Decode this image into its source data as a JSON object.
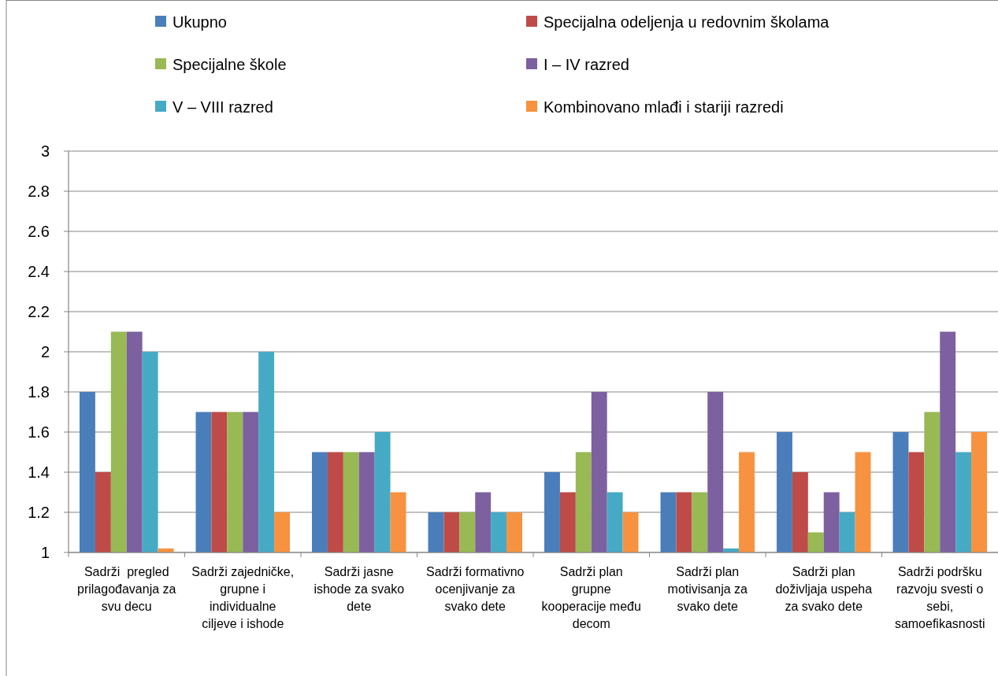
{
  "chart_data": {
    "type": "bar",
    "categories": [
      "Sadrži  pregled prilagođavanja za svu decu",
      "Sadrži zajedničke, grupne i individualne ciljeve i ishode",
      "Sadrži jasne ishode za svako dete",
      "Sadrži formativno ocenjivanje za svako dete",
      "Sadrži plan grupne kooperacije među decom",
      "Sadrži plan motivisanja za svako dete",
      "Sadrži plan doživljaja uspeha za svako dete",
      "Sadrži podršku razvoju svesti o sebi, samoefikasnosti"
    ],
    "series": [
      {
        "name": "Ukupno",
        "color": "#4a7ebb",
        "values": [
          1.8,
          1.7,
          1.5,
          1.2,
          1.4,
          1.3,
          1.6,
          1.6
        ]
      },
      {
        "name": "Specijalna odeljenja u redovnim školama",
        "color": "#be4b48",
        "values": [
          1.4,
          1.7,
          1.5,
          1.2,
          1.3,
          1.3,
          1.4,
          1.5
        ]
      },
      {
        "name": "Specijalne škole",
        "color": "#98b954",
        "values": [
          2.1,
          1.7,
          1.5,
          1.2,
          1.5,
          1.3,
          1.1,
          1.7
        ]
      },
      {
        "name": "I – IV razred",
        "color": "#7d60a0",
        "values": [
          2.1,
          1.7,
          1.5,
          1.3,
          1.8,
          1.8,
          1.3,
          2.1
        ]
      },
      {
        "name": "V – VIII razred",
        "color": "#46aac5",
        "values": [
          2.0,
          2.0,
          1.6,
          1.2,
          1.3,
          1.02,
          1.2,
          1.5
        ]
      },
      {
        "name": "Kombinovano mlađi i stariji razredi",
        "color": "#f69240",
        "values": [
          1.02,
          1.2,
          1.3,
          1.2,
          1.2,
          1.5,
          1.5,
          1.6
        ]
      }
    ],
    "ylim": [
      1,
      3
    ],
    "yticks": [
      1,
      1.2,
      1.4,
      1.6,
      1.8,
      2,
      2.2,
      2.4,
      2.6,
      2.8,
      3
    ],
    "grid": "y",
    "legend": "top"
  }
}
